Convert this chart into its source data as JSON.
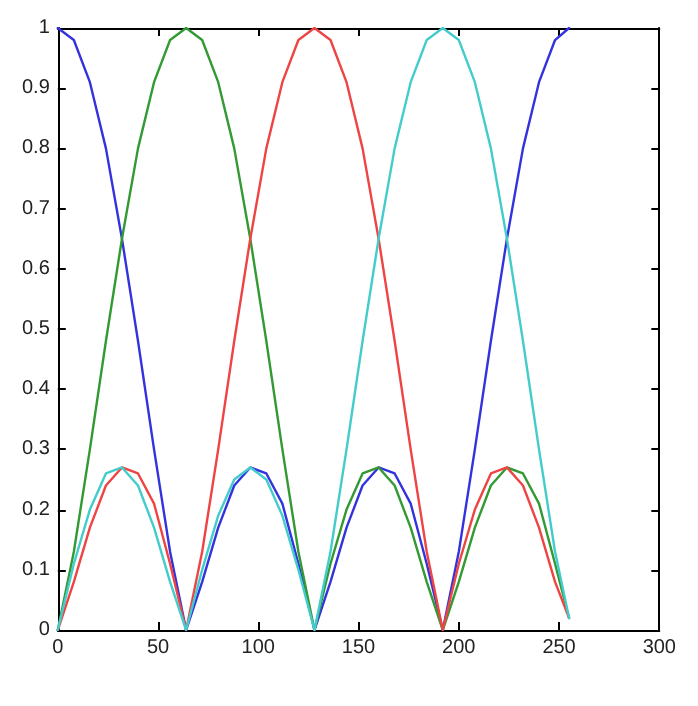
{
  "chart_data": {
    "type": "line",
    "x": [
      0,
      8,
      16,
      24,
      32,
      40,
      48,
      56,
      64,
      72,
      80,
      88,
      96,
      104,
      112,
      120,
      128,
      136,
      144,
      152,
      160,
      168,
      176,
      184,
      192,
      200,
      208,
      216,
      224,
      232,
      240,
      248,
      255
    ],
    "series": [
      {
        "color": "#3333dd",
        "values": [
          1,
          0.98,
          0.91,
          0.8,
          0.65,
          0.48,
          0.3,
          0.13,
          0,
          0.08,
          0.17,
          0.24,
          0.27,
          0.26,
          0.21,
          0.11,
          0,
          0.08,
          0.17,
          0.24,
          0.27,
          0.26,
          0.21,
          0.11,
          0,
          0.13,
          0.3,
          0.48,
          0.65,
          0.8,
          0.91,
          0.98,
          1
        ]
      },
      {
        "color": "#339933",
        "values": [
          0,
          0.13,
          0.3,
          0.48,
          0.65,
          0.8,
          0.91,
          0.98,
          1,
          0.98,
          0.91,
          0.8,
          0.65,
          0.48,
          0.3,
          0.13,
          0,
          0.11,
          0.2,
          0.26,
          0.27,
          0.24,
          0.17,
          0.08,
          0,
          0.08,
          0.17,
          0.24,
          0.27,
          0.26,
          0.21,
          0.11,
          0.02
        ]
      },
      {
        "color": "#ee4444",
        "values": [
          0,
          0.08,
          0.17,
          0.24,
          0.27,
          0.26,
          0.21,
          0.11,
          0,
          0.13,
          0.3,
          0.48,
          0.65,
          0.8,
          0.91,
          0.98,
          1,
          0.98,
          0.91,
          0.8,
          0.65,
          0.48,
          0.3,
          0.13,
          0,
          0.11,
          0.2,
          0.26,
          0.27,
          0.24,
          0.17,
          0.08,
          0.02
        ]
      },
      {
        "color": "#44cccc",
        "values": [
          0,
          0.11,
          0.2,
          0.26,
          0.27,
          0.24,
          0.17,
          0.08,
          0,
          0.1,
          0.19,
          0.25,
          0.27,
          0.25,
          0.19,
          0.1,
          0,
          0.13,
          0.3,
          0.48,
          0.65,
          0.8,
          0.91,
          0.98,
          1,
          0.98,
          0.91,
          0.8,
          0.65,
          0.48,
          0.3,
          0.13,
          0.02
        ]
      }
    ],
    "xlim": [
      0,
      300
    ],
    "xticks": [
      0,
      50,
      100,
      150,
      200,
      250,
      300
    ],
    "ylim": [
      0,
      1
    ],
    "yticks": [
      0,
      0.1,
      0.2,
      0.3,
      0.4,
      0.5,
      0.6,
      0.7,
      0.8,
      0.9,
      1
    ],
    "grid": false,
    "marker": "none",
    "line_style": "solid"
  }
}
